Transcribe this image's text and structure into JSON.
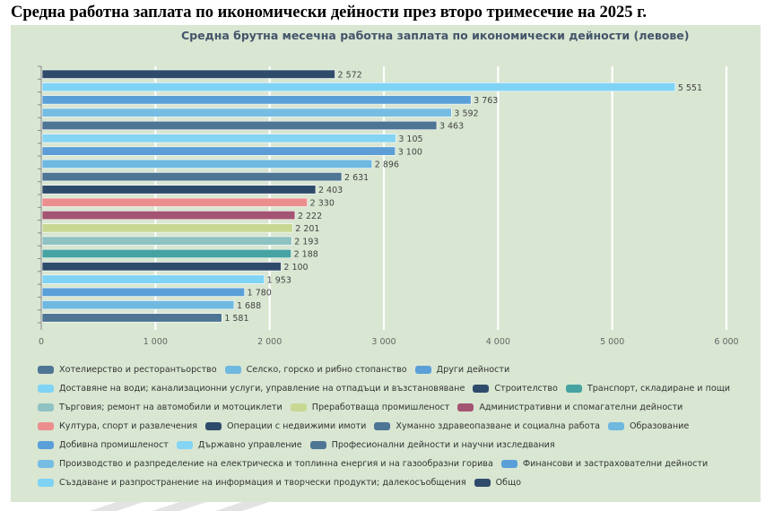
{
  "page_title": "Средна работна заплата по икономически дейности през второ тримесечие на 2025 г.",
  "chart_data": {
    "type": "bar",
    "orientation": "horizontal",
    "title": "Средна брутна месечна работна заплата по икономически дейности (левове)",
    "xlim": [
      0,
      6000
    ],
    "x_ticks": [
      0,
      1000,
      2000,
      3000,
      4000,
      5000,
      6000
    ],
    "x_tick_labels": [
      "0",
      "1 000",
      "2 000",
      "3 000",
      "4 000",
      "5 000",
      "6 000"
    ],
    "bars": [
      {
        "value": 2572,
        "label": "2 572",
        "color": "#2f4b6b"
      },
      {
        "value": 5551,
        "label": "5 551",
        "color": "#7fd3f5"
      },
      {
        "value": 3763,
        "label": "3 763",
        "color": "#5a9fd8"
      },
      {
        "value": 3592,
        "label": "3 592",
        "color": "#76bde3"
      },
      {
        "value": 3463,
        "label": "3 463",
        "color": "#4e7593"
      },
      {
        "value": 3105,
        "label": "3 105",
        "color": "#85d4f3"
      },
      {
        "value": 3100,
        "label": "3 100",
        "color": "#5d9ed6"
      },
      {
        "value": 2896,
        "label": "2 896",
        "color": "#6fb8e0"
      },
      {
        "value": 2631,
        "label": "2 631",
        "color": "#4e7593"
      },
      {
        "value": 2403,
        "label": "2 403",
        "color": "#2f4b6b"
      },
      {
        "value": 2330,
        "label": "2 330",
        "color": "#ec8e8e"
      },
      {
        "value": 2222,
        "label": "2 222",
        "color": "#a45473"
      },
      {
        "value": 2201,
        "label": "2 201",
        "color": "#c8d893"
      },
      {
        "value": 2193,
        "label": "2 193",
        "color": "#8fc2c2"
      },
      {
        "value": 2188,
        "label": "2 188",
        "color": "#47a3a1"
      },
      {
        "value": 2100,
        "label": "2 100",
        "color": "#2f4b6b"
      },
      {
        "value": 1953,
        "label": "1 953",
        "color": "#7fd3f5"
      },
      {
        "value": 1780,
        "label": "1 780",
        "color": "#5a9fd8"
      },
      {
        "value": 1688,
        "label": "1 688",
        "color": "#6fb8e0"
      },
      {
        "value": 1581,
        "label": "1 581",
        "color": "#4e7593"
      }
    ],
    "legend_rows": [
      [
        {
          "label": "Хотелиерство и ресторантьорство",
          "color": "#4e7593"
        },
        {
          "label": "Селско, горско и рибно стопанство",
          "color": "#6fb8e0"
        },
        {
          "label": "Други дейности",
          "color": "#5a9fd8"
        }
      ],
      [
        {
          "label": "Доставяне на води; канализационни услуги, управление на отпадъци и възстановяване",
          "color": "#7fd3f5"
        },
        {
          "label": "Строителство",
          "color": "#2f4b6b"
        },
        {
          "label": "Транспорт, складиране и пощи",
          "color": "#47a3a1"
        }
      ],
      [
        {
          "label": "Търговия; ремонт на автомобили и мотоциклети",
          "color": "#8fc2c2"
        },
        {
          "label": "Преработваща промишленост",
          "color": "#c8d893"
        },
        {
          "label": "Административни и спомагателни дейности",
          "color": "#a45473"
        }
      ],
      [
        {
          "label": "Култура, спорт и развлечения",
          "color": "#ec8e8e"
        },
        {
          "label": "Операции с недвижими имоти",
          "color": "#2f4b6b"
        },
        {
          "label": "Хуманно здравеопазване и социална работа",
          "color": "#4e7593"
        },
        {
          "label": "Образование",
          "color": "#6fb8e0"
        }
      ],
      [
        {
          "label": "Добивна промишленост",
          "color": "#5a9fd8"
        },
        {
          "label": "Държавно управление",
          "color": "#85d4f3"
        },
        {
          "label": "Професионални дейности и научни изследвания",
          "color": "#4e7593"
        }
      ],
      [
        {
          "label": "Производство и разпределение на електрическа и топлинна енергия и на газообразни горива",
          "color": "#76bde3"
        },
        {
          "label": "Финансови и застрахователни дейности",
          "color": "#5a9fd8"
        }
      ],
      [
        {
          "label": "Създаване и разпространение на информация и творчески продукти; далекосъобщения",
          "color": "#7fd3f5"
        },
        {
          "label": "Общо",
          "color": "#2f4b6b"
        }
      ]
    ]
  }
}
